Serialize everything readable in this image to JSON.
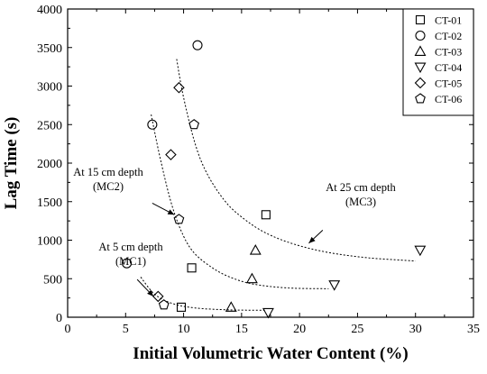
{
  "chart_data": {
    "type": "scatter",
    "title": "",
    "xlabel": "Initial Volumetric Water Content (%)",
    "ylabel": "Lag Time (s)",
    "xlim": [
      0,
      35
    ],
    "ylim": [
      0,
      4000
    ],
    "xticks": [
      0,
      5,
      10,
      15,
      20,
      25,
      30,
      35
    ],
    "yticks": [
      0,
      500,
      1000,
      1500,
      2000,
      2500,
      3000,
      3500,
      4000
    ],
    "grid": false,
    "legend_position": "top-right",
    "series": [
      {
        "name": "CT-01",
        "marker": "square",
        "points": [
          [
            9.8,
            130
          ],
          [
            10.7,
            640
          ],
          [
            17.1,
            1330
          ]
        ]
      },
      {
        "name": "CT-02",
        "marker": "circle",
        "points": [
          [
            5.1,
            700
          ],
          [
            7.3,
            2500
          ],
          [
            11.2,
            3530
          ]
        ]
      },
      {
        "name": "CT-03",
        "marker": "triangle-up",
        "points": [
          [
            14.1,
            130
          ],
          [
            15.9,
            500
          ],
          [
            16.2,
            870
          ]
        ]
      },
      {
        "name": "CT-04",
        "marker": "triangle-down",
        "points": [
          [
            17.3,
            60
          ],
          [
            23.0,
            420
          ],
          [
            30.4,
            870
          ]
        ]
      },
      {
        "name": "CT-05",
        "marker": "diamond",
        "points": [
          [
            7.8,
            270
          ],
          [
            8.9,
            2110
          ],
          [
            9.6,
            2980
          ]
        ]
      },
      {
        "name": "CT-06",
        "marker": "pentagon",
        "points": [
          [
            8.3,
            160
          ],
          [
            9.6,
            1270
          ],
          [
            10.9,
            2500
          ]
        ]
      }
    ],
    "fit_curves": [
      {
        "id": "MC1",
        "points": [
          [
            6.3,
            520
          ],
          [
            7.5,
            300
          ],
          [
            9,
            180
          ],
          [
            11,
            120
          ],
          [
            14,
            95
          ],
          [
            17,
            90
          ]
        ]
      },
      {
        "id": "MC2",
        "points": [
          [
            7.2,
            2630
          ],
          [
            8,
            2050
          ],
          [
            9,
            1450
          ],
          [
            10,
            1050
          ],
          [
            11,
            820
          ],
          [
            12.5,
            640
          ],
          [
            14,
            520
          ],
          [
            16,
            430
          ],
          [
            19,
            380
          ],
          [
            22.5,
            370
          ]
        ]
      },
      {
        "id": "MC3",
        "points": [
          [
            9.4,
            3350
          ],
          [
            10,
            2850
          ],
          [
            11,
            2250
          ],
          [
            12,
            1870
          ],
          [
            13.5,
            1520
          ],
          [
            15,
            1300
          ],
          [
            17,
            1100
          ],
          [
            19.5,
            950
          ],
          [
            22.5,
            840
          ],
          [
            26,
            770
          ],
          [
            30,
            730
          ]
        ]
      }
    ],
    "annotations": [
      {
        "line1": "At 5 cm depth",
        "line2": "(MC1)",
        "arrow_from": [
          6.0,
          490
        ],
        "arrow_to": [
          7.4,
          270
        ]
      },
      {
        "line1": "At 15 cm depth",
        "line2": "(MC2)",
        "arrow_from": [
          7.3,
          1480
        ],
        "arrow_to": [
          9.2,
          1330
        ]
      },
      {
        "line1": "At 25 cm depth",
        "line2": "(MC3)",
        "arrow_from": [
          22.0,
          1130
        ],
        "arrow_to": [
          20.8,
          960
        ]
      }
    ]
  }
}
